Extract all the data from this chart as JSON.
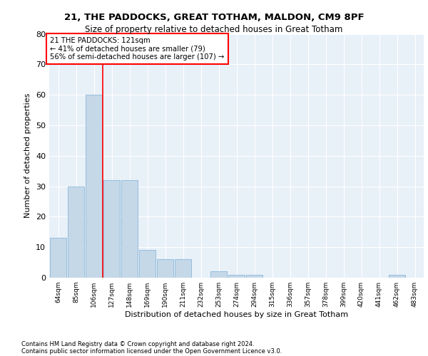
{
  "title1": "21, THE PADDOCKS, GREAT TOTHAM, MALDON, CM9 8PF",
  "title2": "Size of property relative to detached houses in Great Totham",
  "xlabel": "Distribution of detached houses by size in Great Totham",
  "ylabel": "Number of detached properties",
  "categories": [
    "64sqm",
    "85sqm",
    "106sqm",
    "127sqm",
    "148sqm",
    "169sqm",
    "190sqm",
    "211sqm",
    "232sqm",
    "253sqm",
    "274sqm",
    "294sqm",
    "315sqm",
    "336sqm",
    "357sqm",
    "378sqm",
    "399sqm",
    "420sqm",
    "441sqm",
    "462sqm",
    "483sqm"
  ],
  "values": [
    13,
    30,
    60,
    32,
    32,
    9,
    6,
    6,
    0,
    2,
    1,
    1,
    0,
    0,
    0,
    0,
    0,
    0,
    0,
    1,
    0
  ],
  "bar_color": "#c5d8e8",
  "bar_edge_color": "#7bafd4",
  "annotation_box_text": "21 THE PADDOCKS: 121sqm\n← 41% of detached houses are smaller (79)\n56% of semi-detached houses are larger (107) →",
  "vline_x": 2.5,
  "ylim": [
    0,
    80
  ],
  "yticks": [
    0,
    10,
    20,
    30,
    40,
    50,
    60,
    70,
    80
  ],
  "plot_background": "#e8f0f8",
  "footer_line1": "Contains HM Land Registry data © Crown copyright and database right 2024.",
  "footer_line2": "Contains public sector information licensed under the Open Government Licence v3.0."
}
